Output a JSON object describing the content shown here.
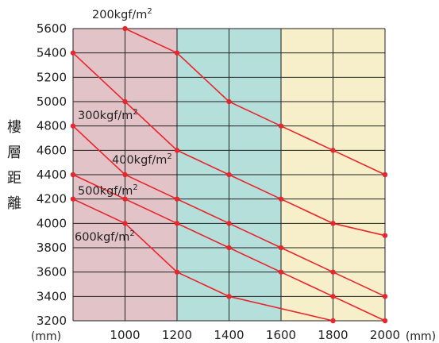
{
  "chart_data": {
    "type": "line",
    "ylabel": "樓層距離",
    "x_unit": "(mm)",
    "y_unit": "(mm)",
    "x": [
      800,
      1000,
      1200,
      1400,
      1600,
      1800,
      2000
    ],
    "x_tick_labels": [
      "1000",
      "1200",
      "1400",
      "1600",
      "1800",
      "2000"
    ],
    "y_tick_labels": [
      "3200",
      "3400",
      "3600",
      "3800",
      "4000",
      "4200",
      "4400",
      "4600",
      "4800",
      "5000",
      "5200",
      "5400",
      "5600"
    ],
    "xlim": [
      800,
      2000
    ],
    "ylim": [
      3200,
      5600
    ],
    "grid": true,
    "bands": [
      {
        "from": 800,
        "to": 1200,
        "color": "#e2c3c8"
      },
      {
        "from": 1200,
        "to": 1600,
        "color": "#b4dfdb"
      },
      {
        "from": 1600,
        "to": 2000,
        "color": "#f6efca"
      }
    ],
    "line_color": "#e8262b",
    "series": [
      {
        "name": "200kgf/m",
        "sup": "2",
        "values": [
          null,
          5600,
          5400,
          5000,
          4800,
          4600,
          4400
        ]
      },
      {
        "name": "300kgf/m",
        "sup": "2",
        "values": [
          5400,
          5000,
          4600,
          4400,
          4200,
          4000,
          3900
        ]
      },
      {
        "name": "400kgf/m",
        "sup": "2",
        "values": [
          4800,
          4400,
          4200,
          4000,
          3800,
          3600,
          3400
        ]
      },
      {
        "name": "500kgf/m",
        "sup": "2",
        "values": [
          4400,
          4200,
          4000,
          3800,
          3600,
          3400,
          3200
        ]
      },
      {
        "name": "600kgf/m",
        "sup": "2",
        "values": [
          4200,
          4000,
          3600,
          3400,
          null,
          3200,
          null
        ]
      }
    ]
  }
}
